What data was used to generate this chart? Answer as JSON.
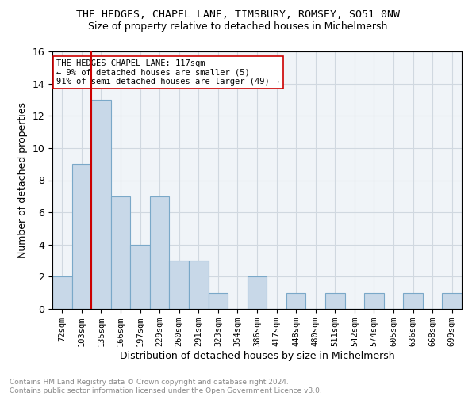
{
  "title": "THE HEDGES, CHAPEL LANE, TIMSBURY, ROMSEY, SO51 0NW",
  "subtitle": "Size of property relative to detached houses in Michelmersh",
  "xlabel": "Distribution of detached houses by size in Michelmersh",
  "ylabel": "Number of detached properties",
  "bins": [
    "72sqm",
    "103sqm",
    "135sqm",
    "166sqm",
    "197sqm",
    "229sqm",
    "260sqm",
    "291sqm",
    "323sqm",
    "354sqm",
    "386sqm",
    "417sqm",
    "448sqm",
    "480sqm",
    "511sqm",
    "542sqm",
    "574sqm",
    "605sqm",
    "636sqm",
    "668sqm",
    "699sqm"
  ],
  "counts": [
    2,
    9,
    13,
    7,
    4,
    7,
    3,
    3,
    1,
    0,
    2,
    0,
    1,
    0,
    1,
    0,
    1,
    0,
    1,
    0,
    1
  ],
  "bar_color": "#c8d8e8",
  "bar_edge_color": "#7aa8c8",
  "vline_x_index": 1,
  "vline_color": "#cc0000",
  "annotation_text": "THE HEDGES CHAPEL LANE: 117sqm\n← 9% of detached houses are smaller (5)\n91% of semi-detached houses are larger (49) →",
  "annotation_box_color": "#ffffff",
  "annotation_box_edge": "#cc0000",
  "ylim": [
    0,
    16
  ],
  "yticks": [
    0,
    2,
    4,
    6,
    8,
    10,
    12,
    14,
    16
  ],
  "footer_text": "Contains HM Land Registry data © Crown copyright and database right 2024.\nContains public sector information licensed under the Open Government Licence v3.0.",
  "grid_color": "#d0d8e0",
  "background_color": "#f0f4f8"
}
